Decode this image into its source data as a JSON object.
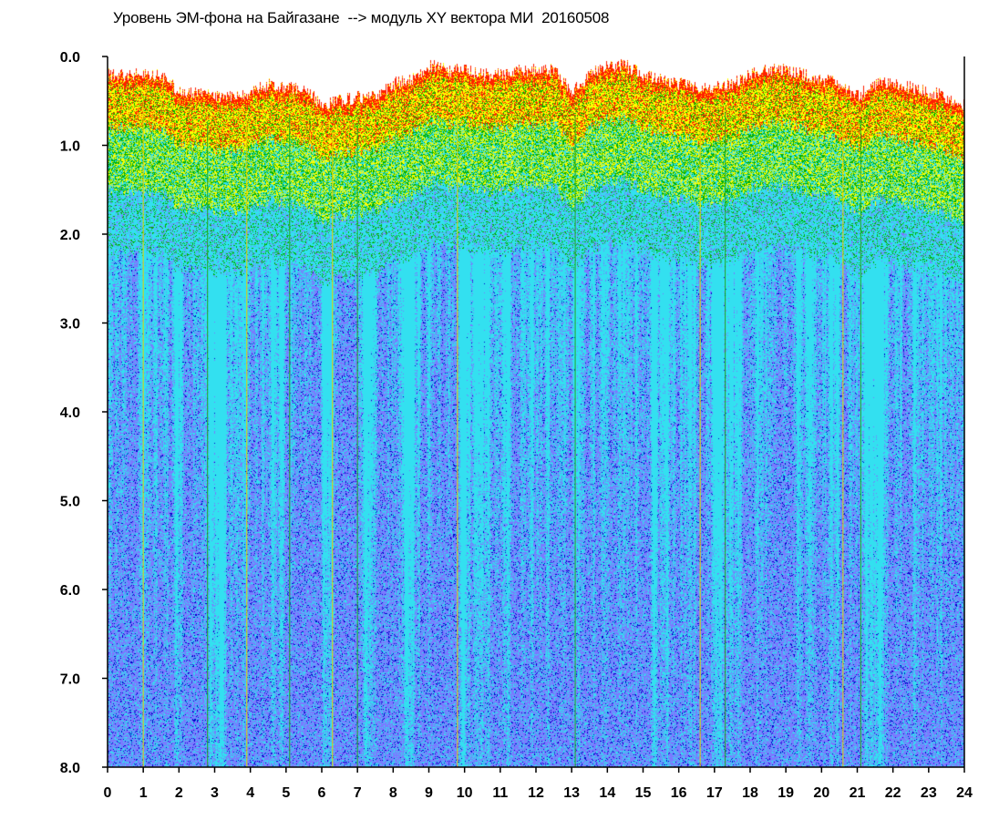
{
  "chart_data": {
    "type": "heatmap",
    "title": "Уровень ЭМ-фона на Байгазане  --> модуль XY вектора МИ  20160508",
    "xlabel": "",
    "ylabel": "",
    "xlim": [
      0,
      24
    ],
    "ylim": [
      0,
      8
    ],
    "y_inverted": true,
    "x_ticks": [
      "0",
      "1",
      "2",
      "3",
      "4",
      "5",
      "6",
      "7",
      "8",
      "9",
      "10",
      "11",
      "12",
      "13",
      "14",
      "15",
      "16",
      "17",
      "18",
      "19",
      "20",
      "21",
      "22",
      "23",
      "24"
    ],
    "y_ticks": [
      "0.0",
      "1.0",
      "2.0",
      "3.0",
      "4.0",
      "5.0",
      "6.0",
      "7.0",
      "8.0"
    ],
    "grid": false,
    "colorscale": [
      "#0000cc",
      "#7a7aff",
      "#33e0f0",
      "#00b000",
      "#ffff00",
      "#ff2000"
    ],
    "upper_envelope": {
      "x": [
        0,
        0.5,
        1,
        1.5,
        2,
        2.5,
        3,
        3.5,
        4,
        4.5,
        5,
        5.5,
        6,
        6.5,
        7,
        7.5,
        8,
        8.5,
        9,
        9.5,
        10,
        10.5,
        11,
        11.5,
        12,
        12.5,
        13,
        13.5,
        14,
        14.5,
        15,
        15.5,
        16,
        16.5,
        17,
        17.5,
        18,
        18.5,
        19,
        19.5,
        20,
        20.5,
        21,
        21.5,
        22,
        22.5,
        23,
        23.5,
        24
      ],
      "y": [
        0.2,
        0.2,
        0.2,
        0.2,
        0.4,
        0.4,
        0.45,
        0.45,
        0.4,
        0.3,
        0.35,
        0.35,
        0.55,
        0.5,
        0.45,
        0.45,
        0.3,
        0.25,
        0.1,
        0.15,
        0.15,
        0.2,
        0.2,
        0.15,
        0.15,
        0.15,
        0.4,
        0.2,
        0.1,
        0.1,
        0.2,
        0.25,
        0.3,
        0.35,
        0.35,
        0.3,
        0.2,
        0.15,
        0.15,
        0.2,
        0.25,
        0.3,
        0.45,
        0.3,
        0.3,
        0.35,
        0.4,
        0.45,
        0.55
      ]
    },
    "spikes_x": [
      1.0,
      2.8,
      3.9,
      5.1,
      6.3,
      7.0,
      9.8,
      13.1,
      16.6,
      17.3,
      20.6,
      21.1
    ]
  }
}
